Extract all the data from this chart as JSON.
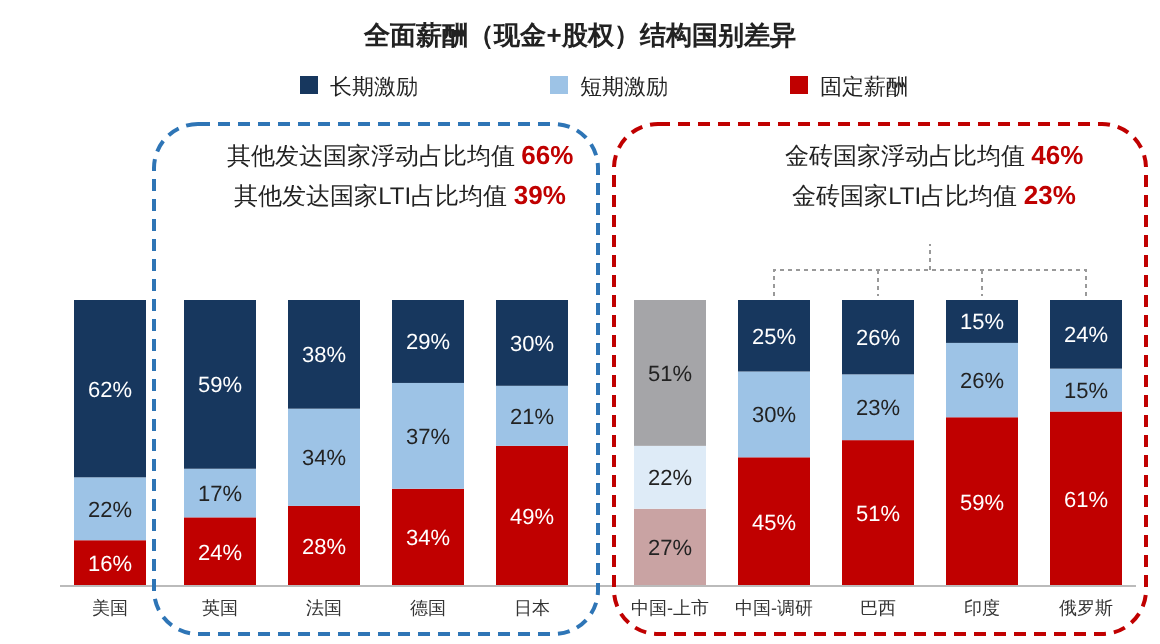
{
  "chart_data": {
    "type": "bar",
    "stacked": true,
    "title": "全面薪酬（现金+股权）结构国别差异",
    "categories": [
      "美国",
      "英国",
      "法国",
      "德国",
      "日本",
      "中国-上市",
      "中国-调研",
      "巴西",
      "印度",
      "俄罗斯"
    ],
    "series": [
      {
        "name": "固定薪酬",
        "color": "#c00000",
        "colors": [
          "#c00000",
          "#c00000",
          "#c00000",
          "#c00000",
          "#c00000",
          "#c9a3a3",
          "#c00000",
          "#c00000",
          "#c00000",
          "#c00000"
        ],
        "values": [
          16,
          24,
          28,
          34,
          49,
          27,
          45,
          51,
          59,
          61
        ],
        "value_labels": [
          "16%",
          "24%",
          "28%",
          "34%",
          "49%",
          "27%",
          "45%",
          "51%",
          "59%",
          "61%"
        ]
      },
      {
        "name": "短期激励",
        "color": "#9dc3e6",
        "colors": [
          "#9dc3e6",
          "#9dc3e6",
          "#9dc3e6",
          "#9dc3e6",
          "#9dc3e6",
          "#deebf7",
          "#9dc3e6",
          "#9dc3e6",
          "#9dc3e6",
          "#9dc3e6"
        ],
        "values": [
          22,
          17,
          34,
          37,
          21,
          22,
          30,
          23,
          26,
          15
        ],
        "value_labels": [
          "22%",
          "17%",
          "34%",
          "37%",
          "21%",
          "22%",
          "30%",
          "23%",
          "26%",
          "15%"
        ]
      },
      {
        "name": "长期激励",
        "color": "#17375e",
        "colors": [
          "#17375e",
          "#17375e",
          "#17375e",
          "#17375e",
          "#17375e",
          "#a5a5a8",
          "#17375e",
          "#17375e",
          "#17375e",
          "#17375e"
        ],
        "values": [
          62,
          59,
          38,
          29,
          30,
          51,
          25,
          26,
          15,
          24
        ],
        "value_labels": [
          "62%",
          "59%",
          "38%",
          "29%",
          "30%",
          "51%",
          "25%",
          "26%",
          "15%",
          "24%"
        ]
      }
    ],
    "legend": "top",
    "annotations": [
      "其他发达国家浮动占比均值 66%",
      "其他发达国家LTI占比均值 39%",
      "金砖国家浮动占比均值 46%",
      "金砖国家LTI占比均值 23%"
    ]
  }
}
